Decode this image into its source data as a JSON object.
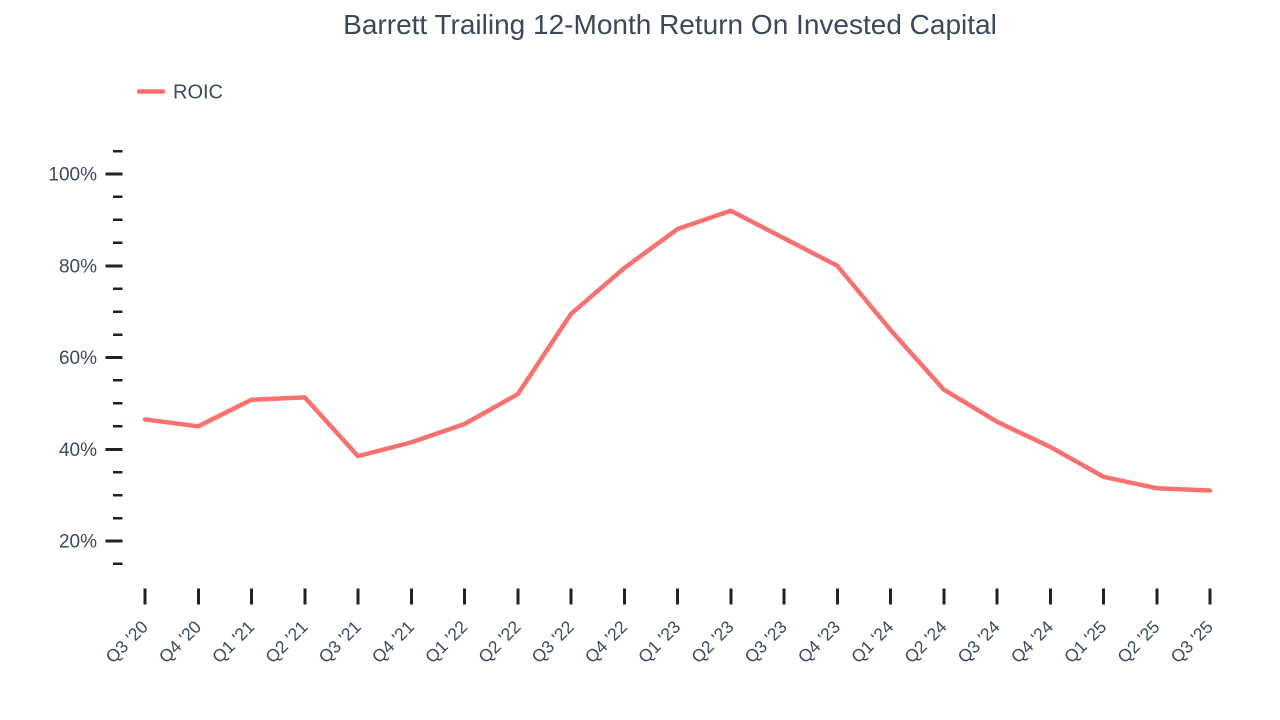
{
  "chart_data": {
    "type": "line",
    "title": "Barrett Trailing 12-Month Return On Invested Capital",
    "legend": "ROIC",
    "unit": "%",
    "categories": [
      "Q3 '20",
      "Q4 '20",
      "Q1 '21",
      "Q2 '21",
      "Q3 '21",
      "Q4 '21",
      "Q1 '22",
      "Q2 '22",
      "Q3 '22",
      "Q4 '22",
      "Q1 '23",
      "Q2 '23",
      "Q3 '23",
      "Q4 '23",
      "Q1 '24",
      "Q2 '24",
      "Q3 '24",
      "Q4 '24",
      "Q1 '25",
      "Q2 '25",
      "Q3 '25"
    ],
    "series": [
      {
        "name": "ROIC",
        "values": [
          46.5,
          45,
          50.8,
          51.3,
          38.5,
          41.5,
          45.5,
          52,
          69.5,
          79.5,
          88,
          92,
          86,
          80,
          66,
          53,
          46,
          40.5,
          34,
          31.5,
          31
        ]
      }
    ],
    "y_axis": {
      "major_tick_labels": [
        "100%",
        "80%",
        "60%",
        "40%",
        "20%"
      ],
      "major_ticks": [
        100,
        80,
        60,
        40,
        20
      ],
      "minor_tick_step": 5,
      "axis_top_value": 105,
      "axis_bottom_value": 15
    },
    "layout": {
      "grid": false,
      "legend_position": "top-left",
      "x_label_rotation_deg": -45
    },
    "colors": {
      "line": "#f87171",
      "title_text": "#3c4858",
      "axis_text": "#3d4a5c",
      "tick_mark": "#1f2329",
      "background": "#ffffff"
    }
  }
}
